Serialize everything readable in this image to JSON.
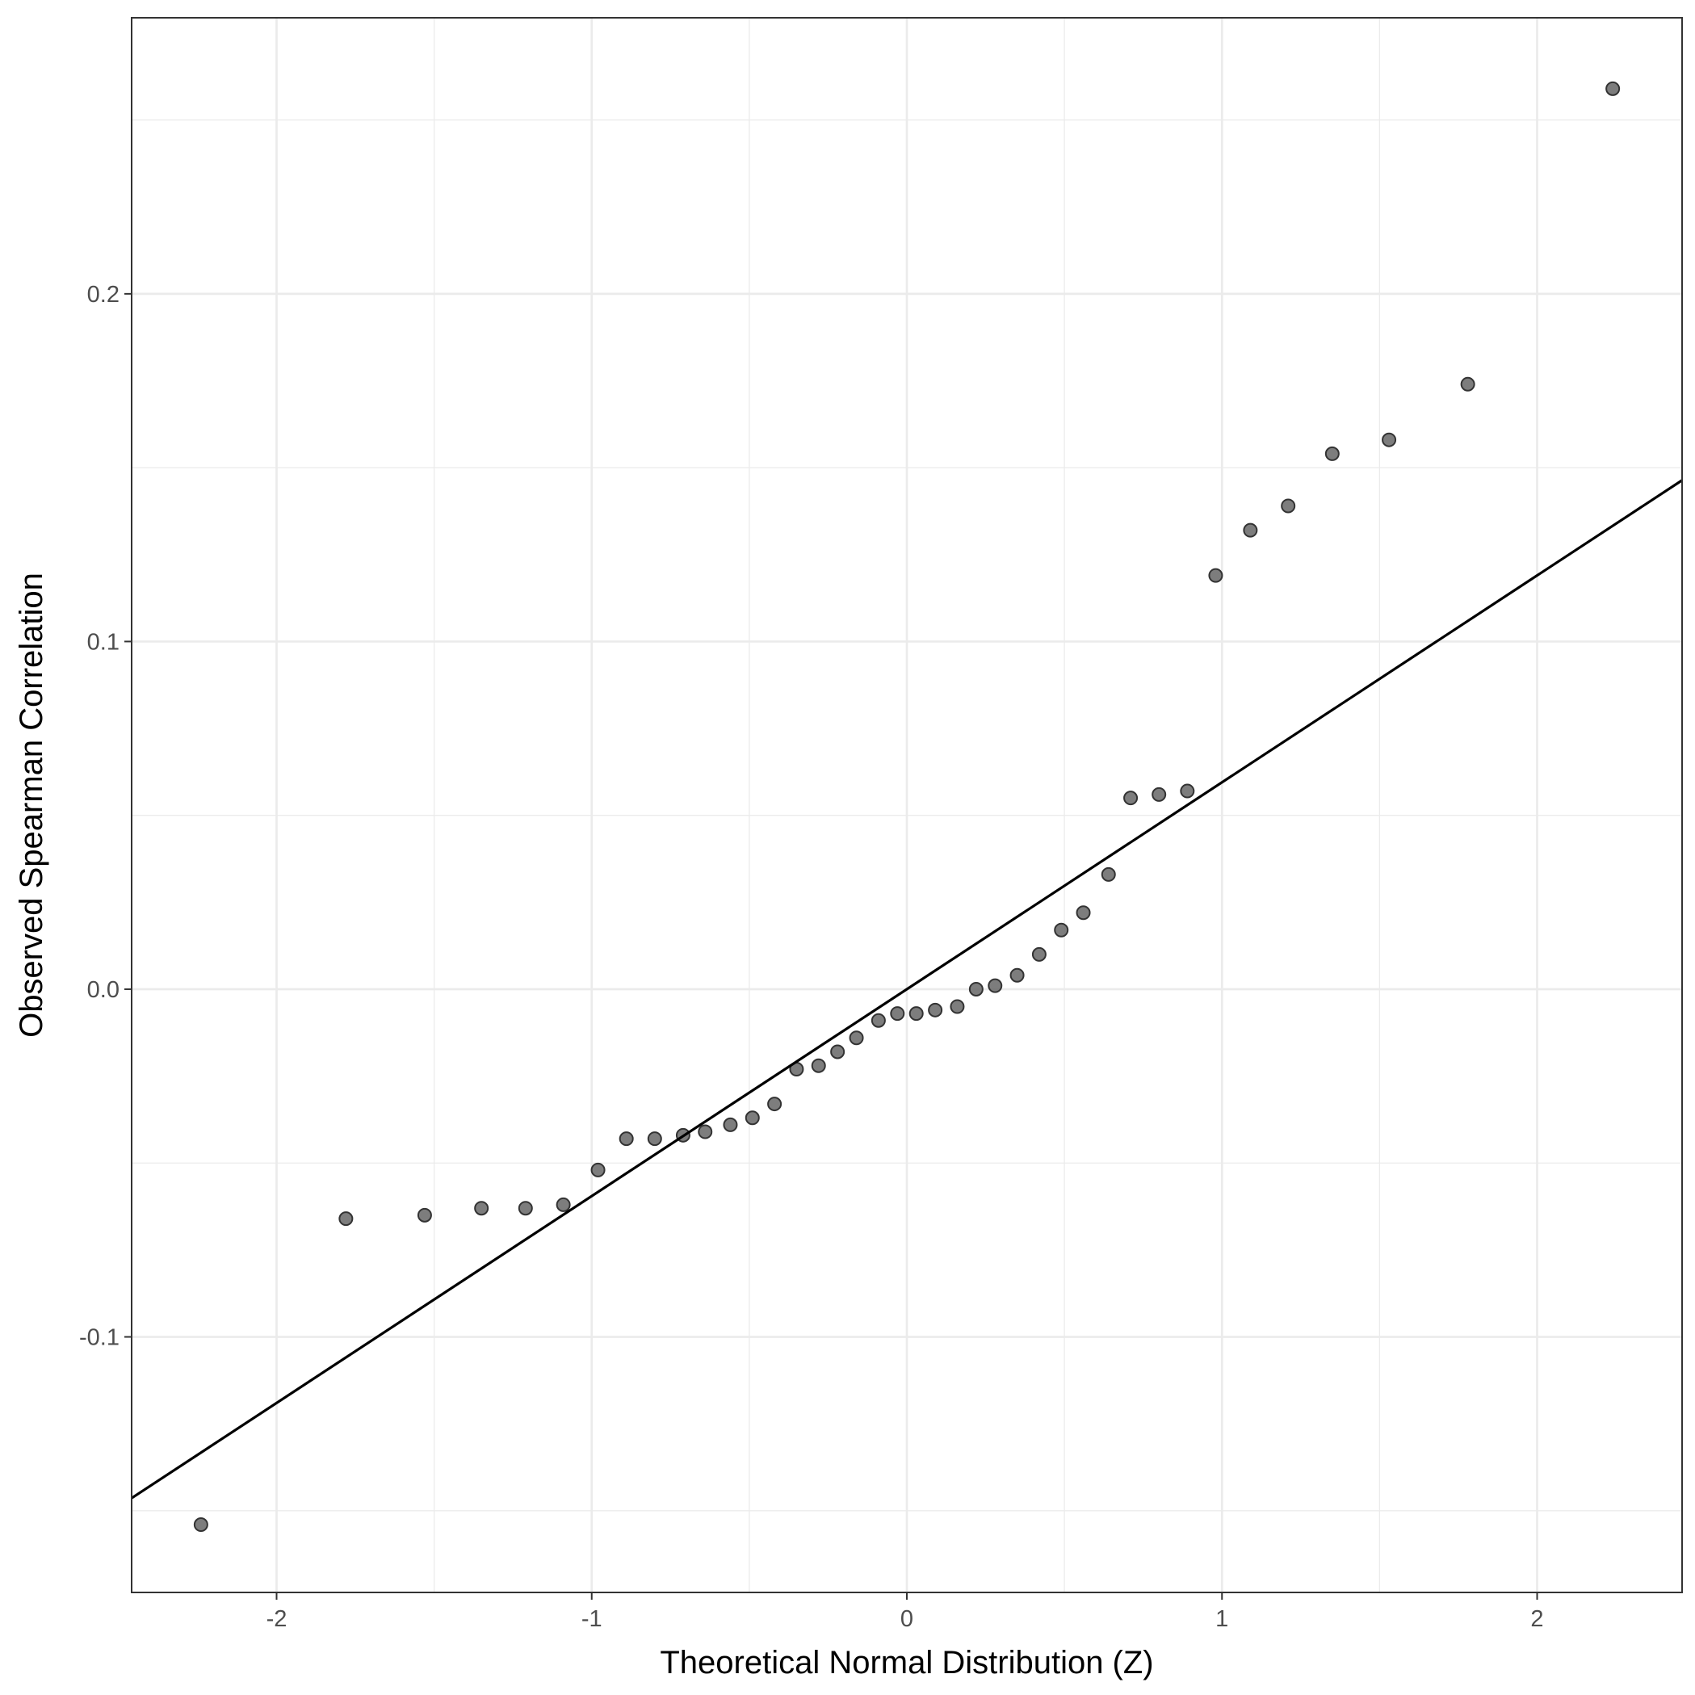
{
  "chart_data": {
    "type": "scatter",
    "title": "",
    "xlabel": "Theoretical Normal Distribution (Z)",
    "ylabel": "Observed Spearman Correlation",
    "xlim": [
      -2.46,
      2.46
    ],
    "ylim": [
      -0.1735,
      0.2794
    ],
    "x_ticks": [
      -2,
      -1,
      0,
      1,
      2
    ],
    "x_tick_labels": [
      "-2",
      "-1",
      "0",
      "1",
      "2"
    ],
    "y_ticks": [
      -0.1,
      0.0,
      0.1,
      0.2
    ],
    "y_tick_labels": [
      "-0.1",
      "0.0",
      "0.1",
      "0.2"
    ],
    "grid": true,
    "point_color": "#666666",
    "line_color": "#000000",
    "reference_line": {
      "intercept": 0.0,
      "slope": 0.0595
    },
    "points": [
      {
        "x": -2.24,
        "y": -0.154
      },
      {
        "x": -1.78,
        "y": -0.066
      },
      {
        "x": -1.53,
        "y": -0.065
      },
      {
        "x": -1.35,
        "y": -0.063
      },
      {
        "x": -1.21,
        "y": -0.063
      },
      {
        "x": -1.09,
        "y": -0.062
      },
      {
        "x": -0.98,
        "y": -0.052
      },
      {
        "x": -0.89,
        "y": -0.043
      },
      {
        "x": -0.8,
        "y": -0.043
      },
      {
        "x": -0.71,
        "y": -0.042
      },
      {
        "x": -0.64,
        "y": -0.041
      },
      {
        "x": -0.56,
        "y": -0.039
      },
      {
        "x": -0.49,
        "y": -0.037
      },
      {
        "x": -0.42,
        "y": -0.033
      },
      {
        "x": -0.35,
        "y": -0.023
      },
      {
        "x": -0.28,
        "y": -0.022
      },
      {
        "x": -0.22,
        "y": -0.018
      },
      {
        "x": -0.16,
        "y": -0.014
      },
      {
        "x": -0.09,
        "y": -0.009
      },
      {
        "x": -0.03,
        "y": -0.007
      },
      {
        "x": 0.03,
        "y": -0.007
      },
      {
        "x": 0.09,
        "y": -0.006
      },
      {
        "x": 0.16,
        "y": -0.005
      },
      {
        "x": 0.22,
        "y": 0.0
      },
      {
        "x": 0.28,
        "y": 0.001
      },
      {
        "x": 0.35,
        "y": 0.004
      },
      {
        "x": 0.42,
        "y": 0.01
      },
      {
        "x": 0.49,
        "y": 0.017
      },
      {
        "x": 0.56,
        "y": 0.022
      },
      {
        "x": 0.64,
        "y": 0.033
      },
      {
        "x": 0.71,
        "y": 0.055
      },
      {
        "x": 0.8,
        "y": 0.056
      },
      {
        "x": 0.89,
        "y": 0.057
      },
      {
        "x": 0.98,
        "y": 0.119
      },
      {
        "x": 1.09,
        "y": 0.132
      },
      {
        "x": 1.21,
        "y": 0.139
      },
      {
        "x": 1.35,
        "y": 0.154
      },
      {
        "x": 1.53,
        "y": 0.158
      },
      {
        "x": 1.78,
        "y": 0.174
      },
      {
        "x": 2.24,
        "y": 0.259
      }
    ]
  }
}
